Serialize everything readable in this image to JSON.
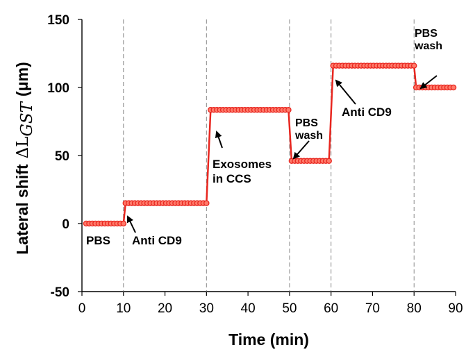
{
  "chart_data": {
    "type": "line",
    "title": "",
    "xlabel": "Time (min)",
    "ylabel_text": "Lateral shift",
    "ylabel_symbol": "ΔL",
    "ylabel_subscript": "GST",
    "ylabel_unit": "(μm)",
    "xlim": [
      0,
      90
    ],
    "ylim": [
      -50,
      150
    ],
    "x_ticks": [
      "0",
      "10",
      "20",
      "30",
      "40",
      "50",
      "60",
      "70",
      "80",
      "90"
    ],
    "y_ticks": [
      "150",
      "100",
      "50",
      "0",
      "-50"
    ],
    "grid": false,
    "vertical_markers": [
      10,
      30,
      50,
      60,
      80
    ],
    "line_color": "#e8261f",
    "marker_fill": "#ff7a6a",
    "segments": [
      {
        "x_start": 1,
        "x_end": 10,
        "step": 0.75,
        "y": 0
      },
      {
        "x_start": 10.5,
        "x_end": 30,
        "step": 0.75,
        "y": 15
      },
      {
        "x_start": 31,
        "x_end": 50,
        "step": 0.75,
        "y": 83.5
      },
      {
        "x_start": 50.5,
        "x_end": 60,
        "step": 0.75,
        "y": 46
      },
      {
        "x_start": 60.5,
        "x_end": 80,
        "step": 0.75,
        "y": 116
      },
      {
        "x_start": 80.5,
        "x_end": 89.5,
        "step": 0.75,
        "y": 100
      }
    ],
    "annotations": [
      {
        "lines": [
          "PBS"
        ]
      },
      {
        "lines": [
          "Anti CD9"
        ]
      },
      {
        "lines": [
          "Exosomes",
          "in CCS"
        ]
      },
      {
        "lines": [
          "PBS",
          "wash"
        ]
      },
      {
        "lines": [
          "Anti CD9"
        ]
      },
      {
        "lines": [
          "PBS",
          "wash"
        ]
      }
    ]
  }
}
